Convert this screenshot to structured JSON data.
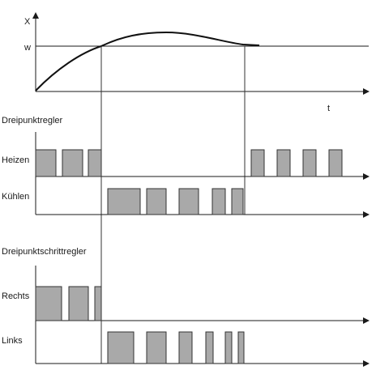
{
  "top_chart": {
    "y_axis_label": "X",
    "setpoint_label": "w",
    "time_label": "t"
  },
  "sections": {
    "three_point_controller": "Dreipunktregler",
    "three_point_step_controller": "Dreipunktschrittregler"
  },
  "tracks": {
    "heizen": "Heizen",
    "kuehlen": "Kühlen",
    "rechts": "Rechts",
    "links": "Links"
  },
  "colors": {
    "pulse_fill": "#a9a9a9",
    "line": "#1a1a1a"
  }
}
